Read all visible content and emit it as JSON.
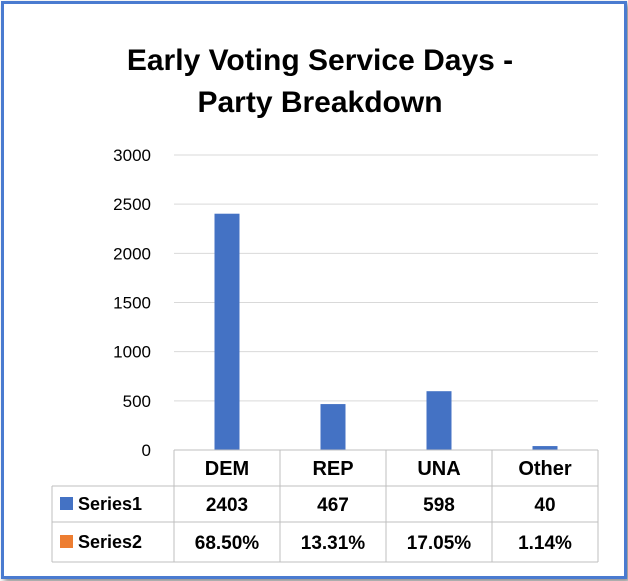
{
  "chart_data": {
    "type": "bar",
    "title_lines": [
      "Early Voting Service Days -",
      "Party Breakdown"
    ],
    "categories": [
      "DEM",
      "REP",
      "UNA",
      "Other"
    ],
    "series": [
      {
        "name": "Series1",
        "values": [
          2403,
          467,
          598,
          40
        ],
        "display": [
          "2403",
          "467",
          "598",
          "40"
        ],
        "color": "#4472c4",
        "plotted": true
      },
      {
        "name": "Series2",
        "values": [
          68.5,
          13.31,
          17.05,
          1.14
        ],
        "display": [
          "68.50%",
          "13.31%",
          "17.05%",
          "1.14%"
        ],
        "color": "#ed7d31",
        "plotted": false
      }
    ],
    "yticks": [
      "0",
      "500",
      "1000",
      "1500",
      "2000",
      "2500",
      "3000"
    ],
    "ylim": [
      0,
      3000
    ],
    "grid": true,
    "legend": "data-table",
    "data_table": true
  }
}
